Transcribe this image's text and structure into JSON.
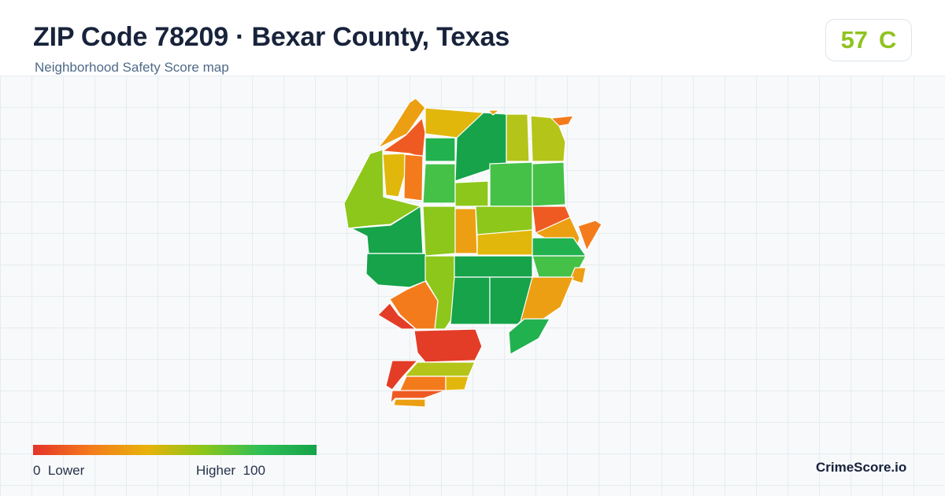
{
  "header": {
    "title": "ZIP Code 78209 · Bexar County, Texas",
    "subtitle": "Neighborhood Safety Score map"
  },
  "score": {
    "value": "57",
    "grade": "C",
    "color": "#8fc31f"
  },
  "legend": {
    "low_value": "0",
    "low_label": "Lower",
    "high_label": "Higher",
    "high_value": "100",
    "gradient": [
      "#e53228",
      "#f47a1c",
      "#e8b20b",
      "#8cc619",
      "#2fbf55",
      "#16a34a"
    ]
  },
  "brand": "CrimeScore.io",
  "map": {
    "region_colors": {
      "red": "#e33d27",
      "red_orange": "#ef5a22",
      "orange": "#f47b1c",
      "amber": "#ec9f12",
      "gold": "#e2b70c",
      "yellow_green": "#b5c419",
      "lime": "#8dc71b",
      "light_green": "#45c148",
      "green": "#22b14f",
      "dark_green": "#16a34a"
    }
  }
}
